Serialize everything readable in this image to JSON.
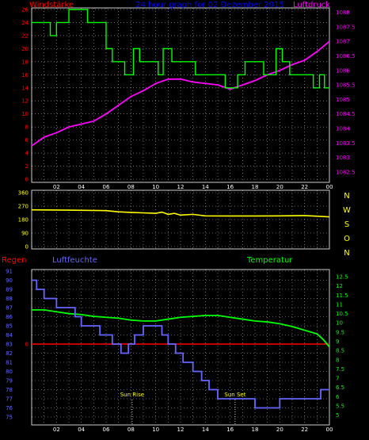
{
  "header": {
    "title": "24 hour graph for 02 Dezember 2015"
  },
  "chart_data": [
    {
      "type": "line",
      "panel": "wind-pressure",
      "left_label": "Windstärke",
      "right_label": "Luftdruck",
      "x_ticks": [
        "02",
        "04",
        "06",
        "08",
        "10",
        "12",
        "14",
        "16",
        "18",
        "20",
        "22",
        "00"
      ],
      "left_ticks": [
        "0",
        "2",
        "4",
        "6",
        "8",
        "10",
        "12",
        "14",
        "16",
        "18",
        "20",
        "22",
        "24",
        "26"
      ],
      "left_ylim": [
        0,
        26
      ],
      "right_ticks": [
        "1082.5",
        "1083",
        "1083.5",
        "1084",
        "1084.5",
        "1085",
        "1085.5",
        "1086",
        "1086.5",
        "1087",
        "1087.5",
        "1088"
      ],
      "right_ylim": [
        1082.25,
        1088.1
      ],
      "grid": true,
      "series": [
        {
          "name": "Windstärke",
          "color": "#00ff00",
          "step": true,
          "x": [
            0,
            1.5,
            2,
            3,
            4.5,
            6,
            6.5,
            7.5,
            8.2,
            8.7,
            10.2,
            10.6,
            11.3,
            13.2,
            13.6,
            15.6,
            16.6,
            17.2,
            18.7,
            19.7,
            20.2,
            20.8,
            22.2,
            22.7,
            23.2,
            23.6,
            24
          ],
          "y": [
            24,
            22,
            24,
            26,
            24,
            20,
            18,
            16,
            20,
            18,
            16,
            20,
            18,
            16,
            16,
            14,
            16,
            18,
            16,
            20,
            18,
            16,
            16,
            14,
            16,
            14,
            14
          ]
        },
        {
          "name": "Luftdruck",
          "color": "#ff00ff",
          "x": [
            0,
            1,
            2,
            3,
            4,
            5,
            6,
            7,
            8,
            9,
            10,
            11,
            12,
            13,
            14,
            15,
            16,
            17,
            18,
            19,
            20,
            21,
            22,
            23,
            24
          ],
          "y": [
            1083.4,
            1083.7,
            1083.85,
            1084.05,
            1084.15,
            1084.25,
            1084.5,
            1084.8,
            1085.1,
            1085.3,
            1085.55,
            1085.7,
            1085.7,
            1085.6,
            1085.55,
            1085.5,
            1085.35,
            1085.5,
            1085.65,
            1085.85,
            1086.0,
            1086.2,
            1086.35,
            1086.65,
            1087.0
          ]
        }
      ]
    },
    {
      "type": "line",
      "panel": "wind-direction",
      "left_ticks": [
        "0",
        "90",
        "180",
        "270",
        "360"
      ],
      "ylim": [
        0,
        360
      ],
      "right_labels": [
        "N",
        "W",
        "S",
        "O",
        "N"
      ],
      "x_ticks": [],
      "grid": true,
      "series": [
        {
          "name": "",
          "color": "#ffff00",
          "x": [
            0,
            3,
            6,
            7,
            8,
            9,
            10,
            10.5,
            11,
            11.5,
            12,
            13,
            14,
            16,
            18,
            20,
            22,
            23,
            24
          ],
          "y": [
            245,
            243,
            240,
            232,
            228,
            225,
            222,
            230,
            215,
            222,
            210,
            215,
            205,
            204,
            204,
            205,
            207,
            203,
            198
          ]
        }
      ]
    },
    {
      "type": "line",
      "panel": "humidity-temperature-rain",
      "labels": {
        "rain": "Regen",
        "humidity": "Luftfeuchte",
        "temperature": "Temperatur"
      },
      "left_ticks": [
        "75",
        "76",
        "77",
        "78",
        "79",
        "80",
        "81",
        "82",
        "83",
        "84",
        "85",
        "86",
        "87",
        "88",
        "89",
        "90",
        "91"
      ],
      "left_ylim": [
        75,
        91
      ],
      "right_ticks": [
        "5",
        "5.5",
        "6",
        "6.5",
        "7",
        "7.5",
        "8",
        "8.5",
        "9",
        "9.5",
        "10",
        "10.5",
        "11",
        "11.5",
        "12",
        "12.5"
      ],
      "right_ylim": [
        4.9,
        12.8
      ],
      "rain_tick": "0",
      "rain_level": 0,
      "x_ticks": [
        "02",
        "04",
        "06",
        "08",
        "10",
        "12",
        "14",
        "16",
        "18",
        "20",
        "22",
        "00"
      ],
      "annotations": [
        {
          "text": "Sun Rise",
          "x": 8.1
        },
        {
          "text": "Sun Set",
          "x": 16.4
        }
      ],
      "grid": true,
      "series": [
        {
          "name": "Luftfeuchte",
          "color": "#6666ff",
          "step": true,
          "x": [
            0,
            0.4,
            1,
            2,
            3,
            3.5,
            4,
            5.5,
            6.5,
            7.2,
            7.8,
            8.3,
            9,
            10,
            10.5,
            11,
            11.6,
            12.2,
            13,
            13.7,
            14.3,
            15,
            17.5,
            18,
            19.3,
            20,
            22,
            23.3,
            24
          ],
          "y": [
            90,
            89,
            88,
            87,
            87,
            86,
            85,
            84,
            83,
            82,
            83,
            84,
            85,
            85,
            84,
            83,
            82,
            81,
            80,
            79,
            78,
            77,
            77,
            76,
            76,
            77,
            77,
            78,
            78
          ]
        },
        {
          "name": "Temperatur",
          "color": "#00ff00",
          "x": [
            0,
            1,
            2,
            3,
            4,
            5,
            6,
            7,
            8,
            9,
            10,
            11,
            12,
            13,
            14,
            15,
            16,
            17,
            18,
            19,
            20,
            21,
            22,
            23,
            23.5,
            24
          ],
          "y": [
            10.7,
            10.7,
            10.6,
            10.5,
            10.45,
            10.35,
            10.3,
            10.25,
            10.15,
            10.1,
            10.1,
            10.2,
            10.3,
            10.35,
            10.4,
            10.4,
            10.3,
            10.2,
            10.1,
            10.05,
            9.95,
            9.8,
            9.6,
            9.4,
            9.1,
            8.7
          ]
        }
      ]
    }
  ]
}
